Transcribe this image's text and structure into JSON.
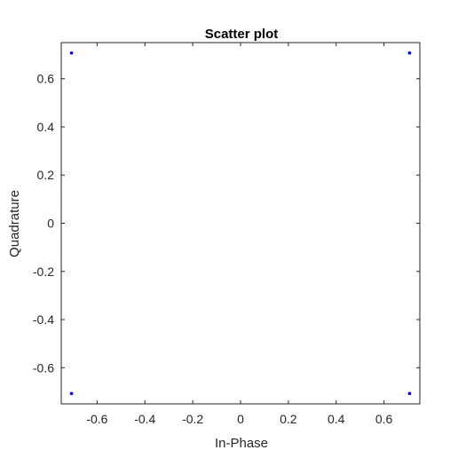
{
  "chart_data": {
    "type": "scatter",
    "title": "Scatter plot",
    "xlabel": "In-Phase",
    "ylabel": "Quadrature",
    "xlim": [
      -0.75,
      0.75
    ],
    "ylim": [
      -0.75,
      0.75
    ],
    "xticks": [
      -0.6,
      -0.4,
      -0.2,
      0,
      0.2,
      0.4,
      0.6
    ],
    "yticks": [
      -0.6,
      -0.4,
      -0.2,
      0,
      0.2,
      0.4,
      0.6
    ],
    "xtick_labels": [
      "-0.6",
      "-0.4",
      "-0.2",
      "0",
      "0.2",
      "0.4",
      "0.6"
    ],
    "ytick_labels": [
      "-0.6",
      "-0.4",
      "-0.2",
      "0",
      "0.2",
      "0.4",
      "0.6"
    ],
    "grid": false,
    "series": [
      {
        "color": "#0000ff",
        "marker": "dot",
        "points": [
          {
            "x": -0.707,
            "y": 0.707
          },
          {
            "x": 0.707,
            "y": 0.707
          },
          {
            "x": -0.707,
            "y": -0.707
          },
          {
            "x": 0.707,
            "y": -0.707
          }
        ]
      }
    ]
  }
}
